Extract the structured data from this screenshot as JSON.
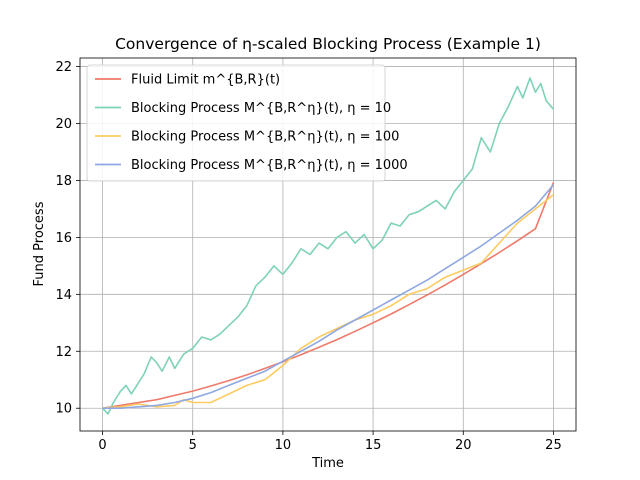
{
  "chart_data": {
    "type": "line",
    "title": "Convergence of η-scaled Blocking Process (Example 1)",
    "xlabel": "Time",
    "ylabel": "Fund Process",
    "xlim": [
      -1.25,
      26.25
    ],
    "ylim": [
      9.2,
      22.3
    ],
    "xticks": [
      0,
      5,
      10,
      15,
      20,
      25
    ],
    "yticks": [
      10,
      12,
      14,
      16,
      18,
      20,
      22
    ],
    "grid": true,
    "legend_position": "top-left",
    "series": [
      {
        "name": "Fluid Limit m^{B,R}(t)",
        "legend_label": "Fluid Limit m^{B,R}(t)",
        "color": "#F07A6A",
        "x": [
          0,
          1,
          2,
          3,
          4,
          5,
          6,
          7,
          8,
          9,
          10,
          11,
          12,
          13,
          14,
          15,
          16,
          17,
          18,
          19,
          20,
          21,
          22,
          23,
          24,
          25
        ],
        "y": [
          10.0,
          10.1,
          10.2,
          10.3,
          10.45,
          10.6,
          10.78,
          10.97,
          11.17,
          11.4,
          11.63,
          11.88,
          12.14,
          12.41,
          12.7,
          13.0,
          13.31,
          13.64,
          13.98,
          14.33,
          14.7,
          15.08,
          15.47,
          15.88,
          16.3,
          17.93
        ]
      },
      {
        "name": "Blocking Process η=10",
        "legend_label": "Blocking Process M^{B,R^η}(t),  η = 10",
        "color": "#7FD1B9",
        "x": [
          0,
          0.3,
          0.6,
          1.0,
          1.3,
          1.6,
          2.0,
          2.3,
          2.7,
          3.0,
          3.3,
          3.7,
          4.0,
          4.5,
          5.0,
          5.5,
          6.0,
          6.5,
          7.0,
          7.5,
          8.0,
          8.5,
          9.0,
          9.5,
          10.0,
          10.5,
          11.0,
          11.5,
          12.0,
          12.5,
          13.0,
          13.5,
          14.0,
          14.5,
          15.0,
          15.5,
          16.0,
          16.5,
          17.0,
          17.5,
          18.0,
          18.5,
          19.0,
          19.5,
          20.0,
          20.5,
          21.0,
          21.5,
          22.0,
          22.5,
          23.0,
          23.3,
          23.7,
          24.0,
          24.3,
          24.6,
          25.0
        ],
        "y": [
          10.0,
          9.8,
          10.2,
          10.6,
          10.8,
          10.5,
          10.9,
          11.2,
          11.8,
          11.6,
          11.3,
          11.8,
          11.4,
          11.9,
          12.1,
          12.5,
          12.4,
          12.6,
          12.9,
          13.2,
          13.6,
          14.3,
          14.6,
          15.0,
          14.7,
          15.1,
          15.6,
          15.4,
          15.8,
          15.6,
          16.0,
          16.2,
          15.8,
          16.1,
          15.6,
          15.9,
          16.5,
          16.4,
          16.8,
          16.9,
          17.1,
          17.3,
          17.0,
          17.6,
          18.0,
          18.4,
          19.5,
          19.0,
          20.0,
          20.6,
          21.3,
          20.9,
          21.6,
          21.1,
          21.4,
          20.8,
          20.5
        ]
      },
      {
        "name": "Blocking Process η=100",
        "legend_label": "Blocking Process M^{B,R^η}(t),  η = 100",
        "color": "#FDCB60",
        "x": [
          0,
          1,
          2,
          3,
          4,
          4.5,
          5,
          6,
          7,
          8,
          9,
          10,
          11,
          12,
          13,
          14,
          15,
          16,
          17,
          18,
          19,
          20,
          21,
          22,
          23,
          24,
          25
        ],
        "y": [
          10.0,
          10.05,
          10.15,
          10.05,
          10.1,
          10.3,
          10.2,
          10.2,
          10.5,
          10.8,
          11.0,
          11.5,
          12.1,
          12.5,
          12.8,
          13.1,
          13.3,
          13.6,
          14.0,
          14.2,
          14.6,
          14.85,
          15.1,
          15.8,
          16.5,
          17.0,
          17.5
        ]
      },
      {
        "name": "Blocking Process η=1000",
        "legend_label": "Blocking Process M^{B,R^η}(t),  η = 1000",
        "color": "#8FA8E2",
        "x": [
          0,
          1,
          2,
          3,
          4,
          5,
          6,
          7,
          8,
          9,
          10,
          11,
          12,
          13,
          14,
          15,
          16,
          17,
          18,
          19,
          20,
          21,
          22,
          23,
          24,
          25
        ],
        "y": [
          10.0,
          10.0,
          10.05,
          10.1,
          10.2,
          10.35,
          10.55,
          10.8,
          11.05,
          11.3,
          11.65,
          12.0,
          12.35,
          12.75,
          13.1,
          13.45,
          13.8,
          14.15,
          14.5,
          14.9,
          15.3,
          15.7,
          16.15,
          16.6,
          17.1,
          17.85
        ]
      }
    ]
  }
}
